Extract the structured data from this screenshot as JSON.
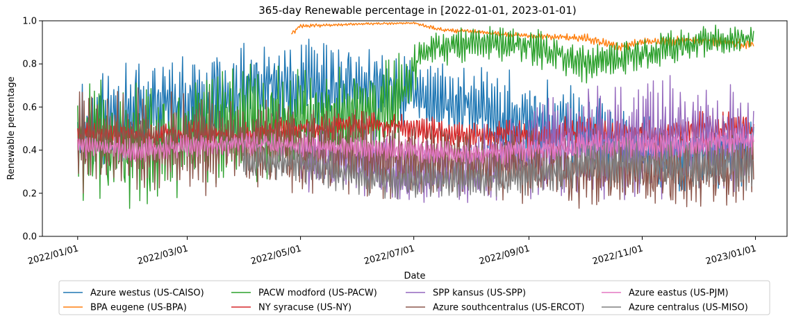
{
  "chart_data": {
    "type": "line",
    "title": "365-day Renewable percentage in [2022-01-01, 2023-01-01)",
    "xlabel": "Date",
    "ylabel": "Renewable percentage",
    "ylim": [
      0,
      1.0
    ],
    "yticks": [
      "0.0",
      "0.2",
      "0.4",
      "0.6",
      "0.8",
      "1.0"
    ],
    "xlim": [
      "2021-12-13",
      "2023-01-18"
    ],
    "xticks": [
      {
        "date": "2022-01-01",
        "label": "2022/01/01"
      },
      {
        "date": "2022-03-01",
        "label": "2022/03/01"
      },
      {
        "date": "2022-05-01",
        "label": "2022/05/01"
      },
      {
        "date": "2022-07-01",
        "label": "2022/07/01"
      },
      {
        "date": "2022-09-01",
        "label": "2022/09/01"
      },
      {
        "date": "2022-11-01",
        "label": "2022/11/01"
      },
      {
        "date": "2023-01-01",
        "label": "2023/01/01"
      }
    ],
    "grid": false,
    "legend_position": "below",
    "series": [
      {
        "name": "Azure westus (US-CAISO)",
        "color": "#1f77b4",
        "x": [
          "2022-01-01",
          "2022-02-01",
          "2022-03-01",
          "2022-04-01",
          "2022-05-01",
          "2022-06-01",
          "2022-07-01",
          "2022-08-01",
          "2022-09-01",
          "2022-10-01",
          "2022-11-01",
          "2022-12-01",
          "2022-12-31"
        ],
        "y": [
          0.5,
          0.58,
          0.62,
          0.66,
          0.68,
          0.7,
          0.66,
          0.6,
          0.52,
          0.5,
          0.4,
          0.38,
          0.4
        ],
        "amp": [
          0.2,
          0.2,
          0.2,
          0.2,
          0.2,
          0.18,
          0.18,
          0.18,
          0.2,
          0.18,
          0.15,
          0.15,
          0.15
        ]
      },
      {
        "name": "BPA eugene (US-BPA)",
        "color": "#ff7f0e",
        "x": [
          "2022-04-26",
          "2022-05-01",
          "2022-06-01",
          "2022-07-01",
          "2022-07-15",
          "2022-08-01",
          "2022-09-01",
          "2022-10-01",
          "2022-10-20",
          "2022-11-01",
          "2022-12-01",
          "2022-12-31"
        ],
        "y": [
          0.94,
          0.975,
          0.985,
          0.99,
          0.96,
          0.95,
          0.93,
          0.92,
          0.88,
          0.9,
          0.91,
          0.89
        ],
        "amp": [
          0.01,
          0.01,
          0.005,
          0.005,
          0.01,
          0.01,
          0.01,
          0.02,
          0.02,
          0.02,
          0.02,
          0.02
        ]
      },
      {
        "name": "PACW modford (US-PACW)",
        "color": "#2ca02c",
        "x": [
          "2022-01-01",
          "2022-02-01",
          "2022-03-01",
          "2022-04-01",
          "2022-05-01",
          "2022-06-01",
          "2022-06-20",
          "2022-07-05",
          "2022-08-01",
          "2022-09-01",
          "2022-10-01",
          "2022-11-01",
          "2022-12-01",
          "2022-12-31"
        ],
        "y": [
          0.45,
          0.42,
          0.48,
          0.5,
          0.55,
          0.55,
          0.6,
          0.85,
          0.9,
          0.88,
          0.8,
          0.85,
          0.9,
          0.93
        ],
        "amp": [
          0.25,
          0.25,
          0.25,
          0.25,
          0.2,
          0.2,
          0.2,
          0.08,
          0.07,
          0.08,
          0.08,
          0.08,
          0.07,
          0.05
        ]
      },
      {
        "name": "NY syracuse (US-NY)",
        "color": "#d62728",
        "x": [
          "2022-01-01",
          "2022-02-01",
          "2022-03-01",
          "2022-04-01",
          "2022-05-01",
          "2022-06-01",
          "2022-07-01",
          "2022-08-01",
          "2022-09-01",
          "2022-10-01",
          "2022-11-01",
          "2022-12-01",
          "2022-12-31"
        ],
        "y": [
          0.48,
          0.47,
          0.48,
          0.47,
          0.5,
          0.52,
          0.5,
          0.46,
          0.47,
          0.48,
          0.47,
          0.5,
          0.5
        ],
        "amp": [
          0.05,
          0.05,
          0.05,
          0.05,
          0.06,
          0.06,
          0.06,
          0.06,
          0.07,
          0.07,
          0.07,
          0.07,
          0.07
        ]
      },
      {
        "name": "SPP kansus (US-SPP)",
        "color": "#9467bd",
        "x": [
          "2022-05-01",
          "2022-06-01",
          "2022-07-01",
          "2022-08-01",
          "2022-09-01",
          "2022-10-01",
          "2022-11-01",
          "2022-12-01",
          "2022-12-31"
        ],
        "y": [
          0.35,
          0.35,
          0.3,
          0.32,
          0.4,
          0.45,
          0.45,
          0.45,
          0.45
        ],
        "amp": [
          0.15,
          0.15,
          0.12,
          0.15,
          0.2,
          0.25,
          0.25,
          0.25,
          0.2
        ]
      },
      {
        "name": "Azure southcentralus (US-ERCOT)",
        "color": "#8c564b",
        "x": [
          "2022-01-01",
          "2022-02-01",
          "2022-03-01",
          "2022-04-01",
          "2022-05-01",
          "2022-06-01",
          "2022-07-01",
          "2022-08-01",
          "2022-09-01",
          "2022-10-01",
          "2022-11-01",
          "2022-12-01",
          "2022-12-31"
        ],
        "y": [
          0.45,
          0.45,
          0.42,
          0.44,
          0.4,
          0.38,
          0.35,
          0.34,
          0.32,
          0.3,
          0.3,
          0.3,
          0.32
        ],
        "amp": [
          0.22,
          0.22,
          0.22,
          0.2,
          0.18,
          0.18,
          0.15,
          0.15,
          0.15,
          0.15,
          0.15,
          0.15,
          0.15
        ]
      },
      {
        "name": "Azure eastus (US-PJM)",
        "color": "#e377c2",
        "x": [
          "2022-01-01",
          "2022-02-01",
          "2022-03-01",
          "2022-04-01",
          "2022-05-01",
          "2022-06-01",
          "2022-07-01",
          "2022-08-01",
          "2022-09-01",
          "2022-10-01",
          "2022-11-01",
          "2022-12-01",
          "2022-12-31"
        ],
        "y": [
          0.42,
          0.4,
          0.42,
          0.43,
          0.42,
          0.41,
          0.4,
          0.38,
          0.4,
          0.42,
          0.42,
          0.43,
          0.45
        ],
        "amp": [
          0.05,
          0.05,
          0.05,
          0.05,
          0.05,
          0.05,
          0.05,
          0.05,
          0.05,
          0.06,
          0.06,
          0.06,
          0.06
        ]
      },
      {
        "name": "Azure centralus (US-MISO)",
        "color": "#7f7f7f",
        "x": [
          "2022-03-31",
          "2022-05-01",
          "2022-06-01",
          "2022-07-01",
          "2022-08-01",
          "2022-09-01",
          "2022-10-01",
          "2022-11-01",
          "2022-12-01",
          "2022-12-31"
        ],
        "y": [
          0.35,
          0.34,
          0.28,
          0.25,
          0.26,
          0.28,
          0.34,
          0.34,
          0.33,
          0.32
        ],
        "amp": [
          0.08,
          0.08,
          0.08,
          0.08,
          0.08,
          0.08,
          0.1,
          0.1,
          0.1,
          0.1
        ]
      }
    ]
  }
}
